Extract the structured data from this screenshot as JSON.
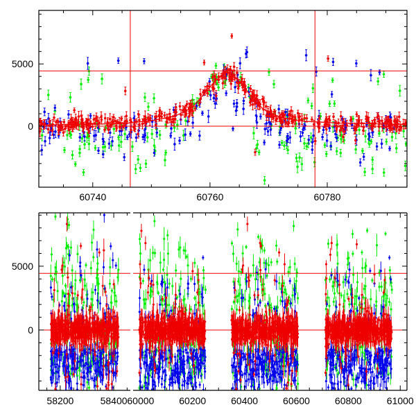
{
  "chart_data": [
    {
      "type": "scatter",
      "title": "",
      "xlabel": "",
      "ylabel": "",
      "xlim": [
        60730.8,
        60793.6
      ],
      "ylim": [
        -4900,
        9300
      ],
      "xticks": [
        60740,
        60760,
        60780
      ],
      "xtick_labels": [
        "60740",
        "60760",
        "60780"
      ],
      "yticks": [
        0,
        5000
      ],
      "ytick_labels": [
        "0",
        "5000"
      ],
      "grid": false,
      "hlines": [
        0,
        4440
      ],
      "vlines": [
        60746.4,
        60777.9
      ],
      "series": [
        {
          "name": "green",
          "color": "#00ee00"
        },
        {
          "name": "blue",
          "color": "#0000ee"
        },
        {
          "name": "red",
          "color": "#ee0000"
        }
      ],
      "model_curve": {
        "color": "#ee0000",
        "x": [
          60731,
          60740,
          60746,
          60750,
          60754,
          60757,
          60759,
          60761,
          60763,
          60765,
          60767,
          60769,
          60772,
          60776,
          60782,
          60793
        ],
        "y": [
          100,
          150,
          250,
          450,
          800,
          1500,
          2600,
          3700,
          4350,
          3600,
          2400,
          1400,
          700,
          400,
          250,
          150
        ]
      },
      "n_points": {
        "green": 160,
        "blue": 180,
        "red": 420
      }
    },
    {
      "type": "scatter",
      "title": "",
      "xlabel": "",
      "ylabel": "",
      "broken_axis": true,
      "segments": [
        {
          "xlim": [
            58120,
            58462
          ],
          "xticks": [
            58200,
            58400
          ],
          "xtick_labels": [
            "58200",
            "58400"
          ]
        },
        {
          "xlim": [
            59971,
            61026
          ],
          "xticks": [
            60000,
            60200,
            60400,
            60600,
            60800,
            61000
          ],
          "xtick_labels": [
            "60000",
            "60200",
            "60400",
            "60600",
            "60800",
            "61000"
          ]
        }
      ],
      "ylim": [
        -4730,
        9180
      ],
      "yticks": [
        0,
        5000
      ],
      "ytick_labels": [
        "0",
        "5000"
      ],
      "grid": false,
      "hlines": [
        0,
        4440
      ],
      "seasons": [
        [
          58164,
          58418
        ],
        [
          59995,
          60250
        ],
        [
          60350,
          60606
        ],
        [
          60712,
          60968
        ]
      ],
      "series": [
        {
          "name": "green",
          "color": "#00ee00"
        },
        {
          "name": "blue",
          "color": "#0000ee"
        },
        {
          "name": "red",
          "color": "#ee0000"
        }
      ],
      "n_points_per_season": {
        "green": 160,
        "blue": 260,
        "red": 520
      }
    }
  ]
}
